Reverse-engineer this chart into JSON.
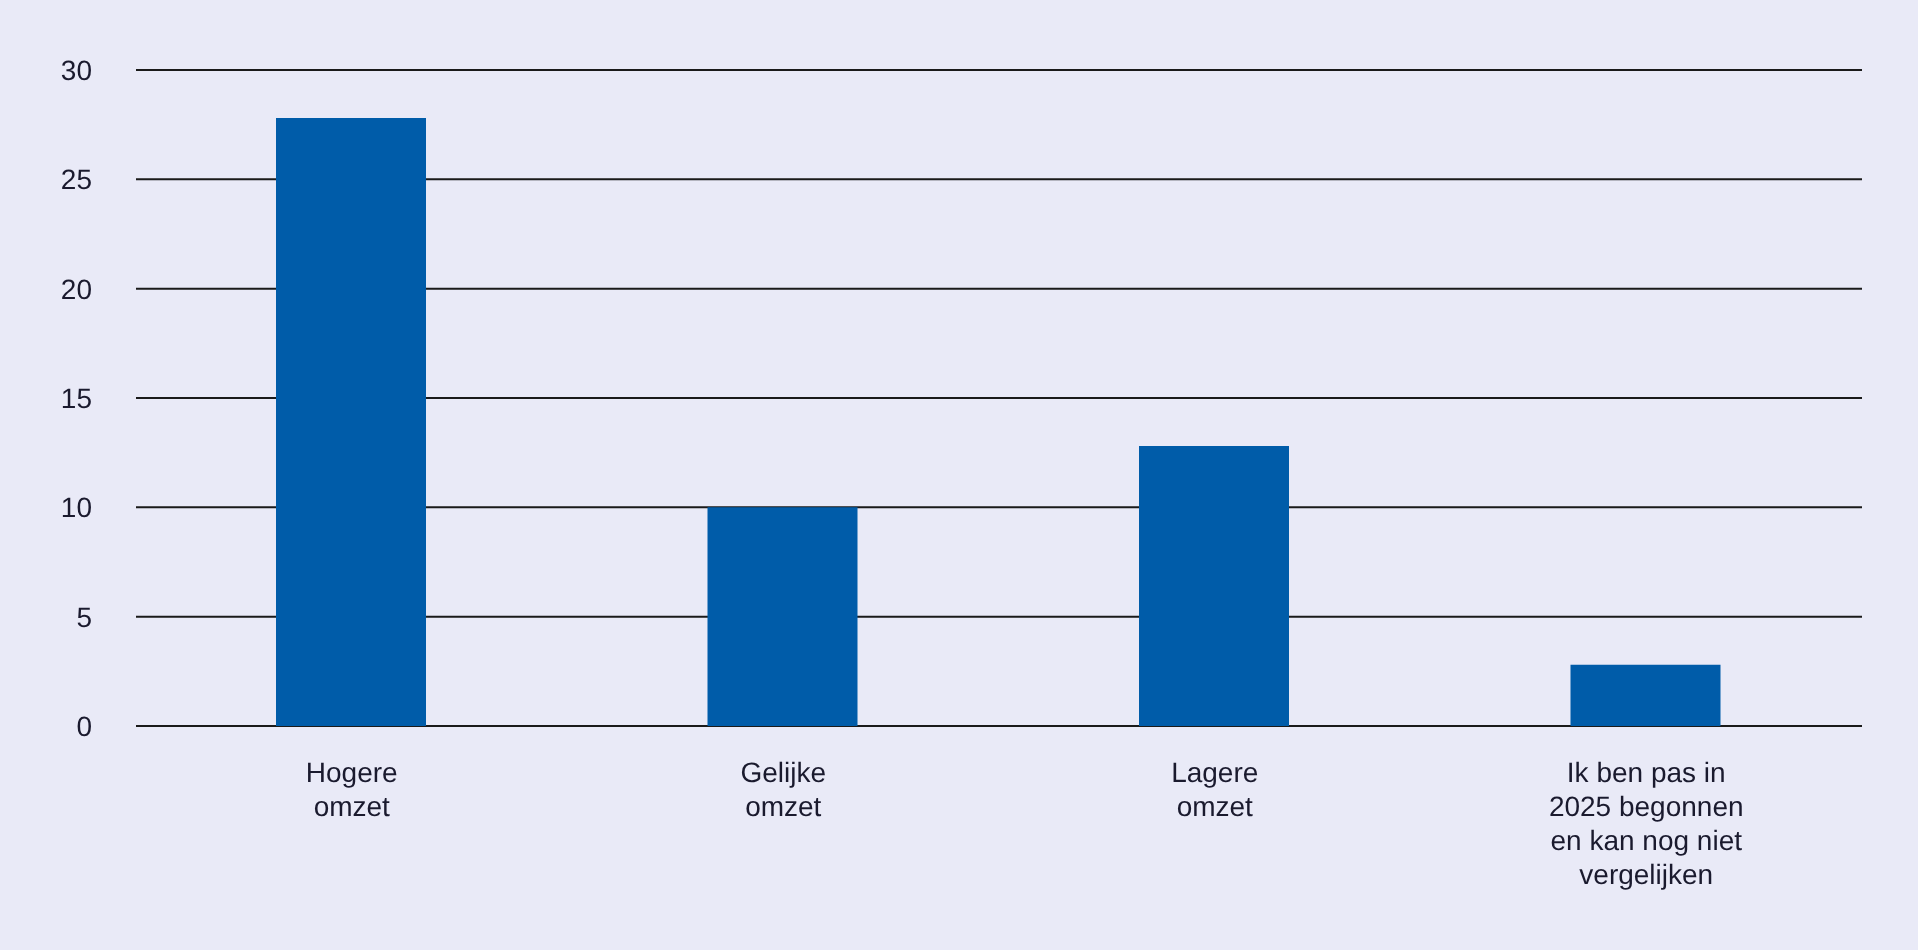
{
  "chart_data": {
    "type": "bar",
    "categories": [
      "Hogere\nomzet",
      "Gelijke\nomzet",
      "Lagere\nomzet",
      "Ik ben pas in\n2025 begonnen\nen kan nog niet\nvergelijken"
    ],
    "values": [
      27.8,
      10,
      12.8,
      2.8
    ],
    "color": "#005ca9",
    "ylim": [
      0,
      30
    ],
    "yticks": [
      0,
      5,
      10,
      15,
      20,
      25,
      30
    ],
    "grid": "y"
  }
}
